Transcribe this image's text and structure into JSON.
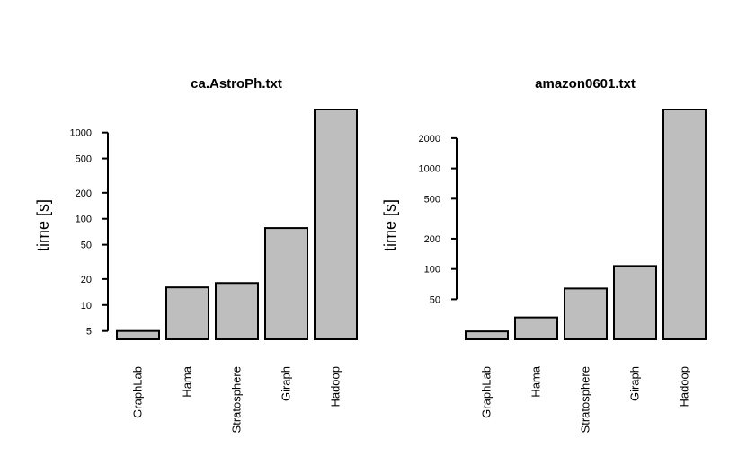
{
  "chart_data": [
    {
      "type": "bar",
      "title": "ca.AstroPh.txt",
      "xlabel": "",
      "ylabel": "time [s]",
      "yscale": "log",
      "categories": [
        "GraphLab",
        "Hama",
        "Stratosphere",
        "Giraph",
        "Hadoop"
      ],
      "values": [
        5,
        16,
        18,
        78,
        1850
      ],
      "ylim": [
        4,
        1850
      ],
      "yticks": [
        5,
        10,
        20,
        50,
        100,
        200,
        500,
        1000
      ],
      "ytick_labels": [
        "5",
        "10",
        "20",
        "50",
        "100",
        "200",
        "500",
        "1000"
      ],
      "colors": {
        "bar": "#bebebe",
        "edge": "#000000"
      }
    },
    {
      "type": "bar",
      "title": "amazon0601.txt",
      "xlabel": "",
      "ylabel": "time [s]",
      "yscale": "log",
      "categories": [
        "GraphLab",
        "Hama",
        "Stratosphere",
        "Giraph",
        "Hadoop"
      ],
      "values": [
        24,
        33,
        64,
        107,
        3850
      ],
      "ylim": [
        20,
        3850
      ],
      "yticks": [
        50,
        100,
        200,
        500,
        1000,
        2000
      ],
      "ytick_labels": [
        "50",
        "100",
        "200",
        "500",
        "1000",
        "2000"
      ],
      "colors": {
        "bar": "#bebebe",
        "edge": "#000000"
      }
    }
  ]
}
